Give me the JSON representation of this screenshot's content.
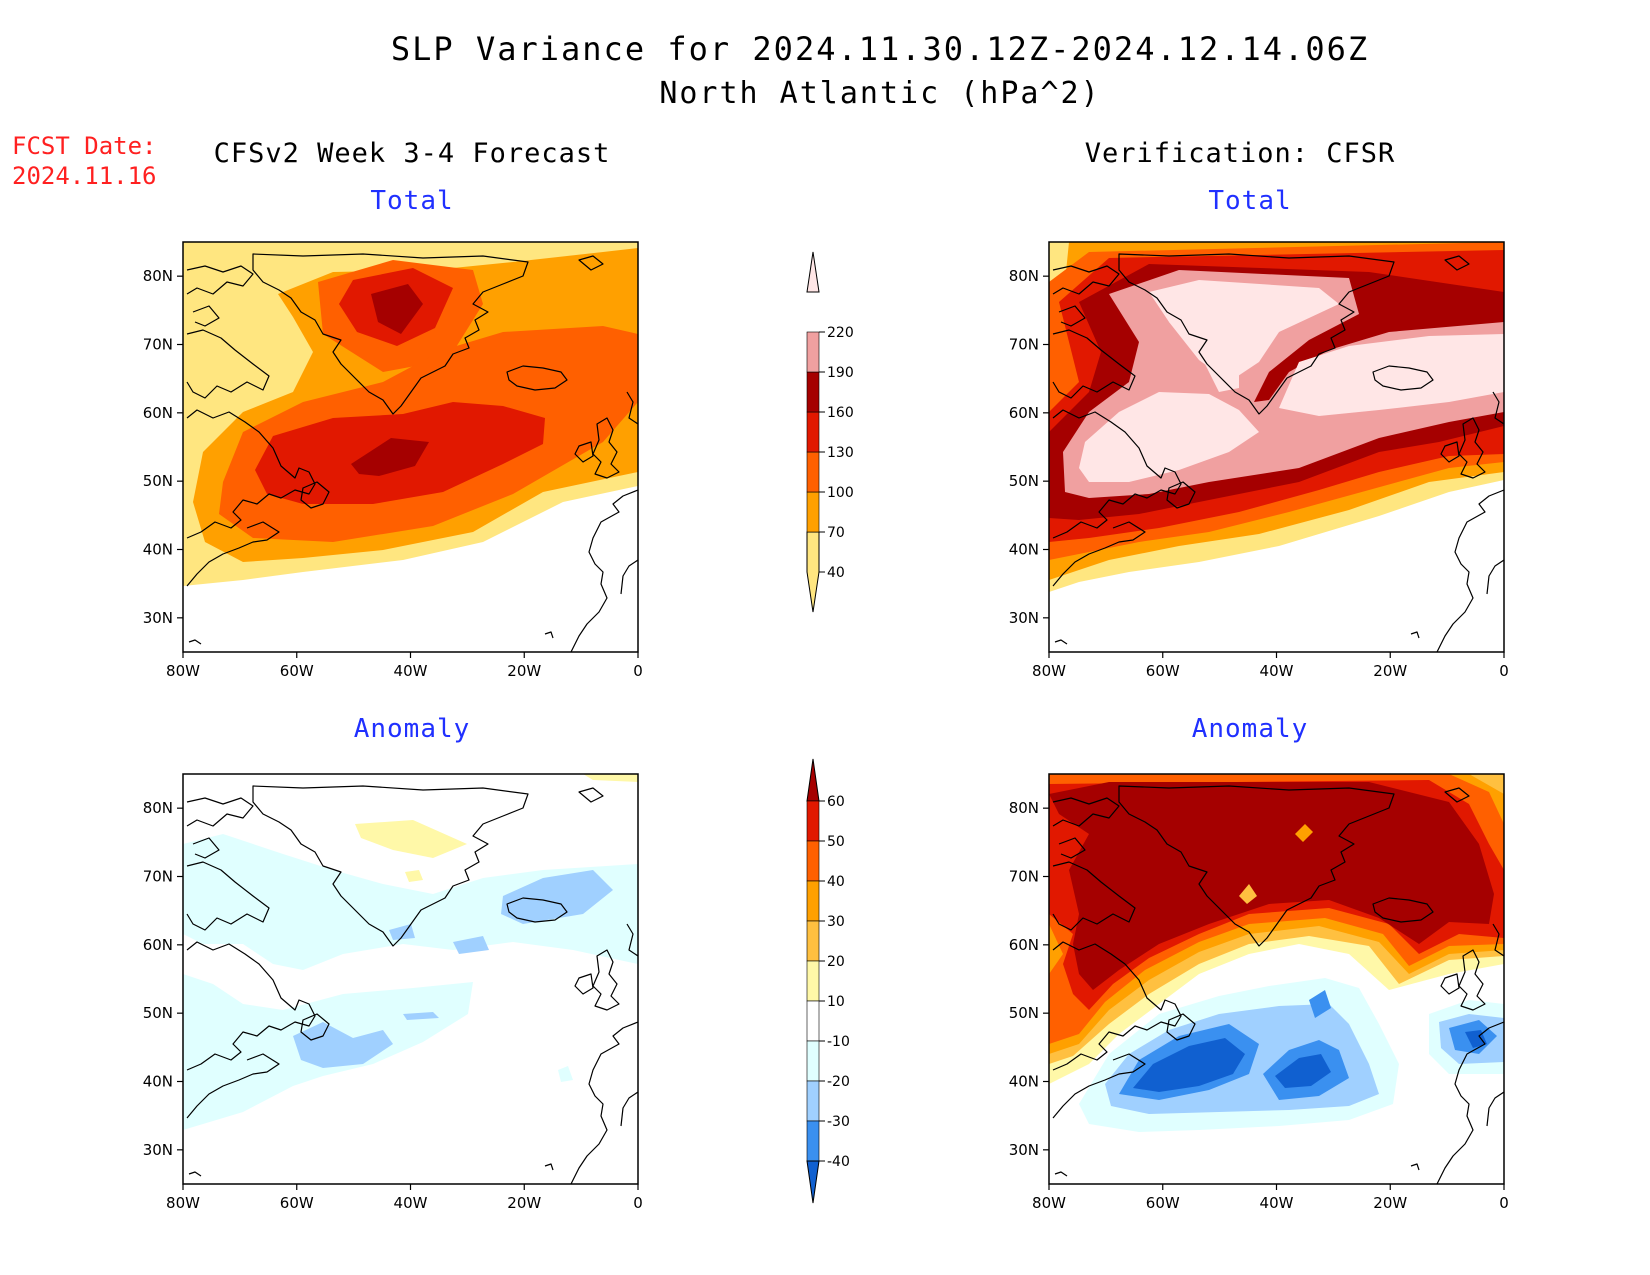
{
  "title_line1": "SLP Variance for 2024.11.30.12Z-2024.12.14.06Z",
  "title_line2": "North Atlantic (hPa^2)",
  "fcst_label": "FCST Date:",
  "fcst_date": "2024.11.16",
  "left_column_title": "CFSv2 Week 3-4 Forecast",
  "right_column_title": "Verification: CFSR",
  "panels": {
    "forecast_total": {
      "subtitle": "Total"
    },
    "forecast_anomaly": {
      "subtitle": "Anomaly"
    },
    "verification_total": {
      "subtitle": "Total"
    },
    "verification_anomaly": {
      "subtitle": "Anomaly"
    }
  },
  "axes": {
    "lat_ticks": [
      "80N",
      "70N",
      "60N",
      "50N",
      "40N",
      "30N"
    ],
    "lon_ticks": [
      "80W",
      "60W",
      "40W",
      "20W",
      "0"
    ],
    "lat_range": [
      25,
      85
    ],
    "lon_range": [
      -80,
      0
    ]
  },
  "colorbar_total": {
    "levels": [
      "40",
      "70",
      "100",
      "130",
      "160",
      "190",
      "220"
    ],
    "colors": [
      "#ffe680",
      "#ffa000",
      "#ff6000",
      "#e11800",
      "#a50000",
      "#f0a0a0",
      "#ffe6e6"
    ]
  },
  "colorbar_anomaly": {
    "levels": [
      "60",
      "50",
      "40",
      "30",
      "20",
      "10",
      "-10",
      "-20",
      "-30",
      "-40"
    ],
    "colors": [
      "#a50000",
      "#e11800",
      "#ff6000",
      "#ffa000",
      "#ffc040",
      "#fff8a8",
      "#ffffff",
      "#e0ffff",
      "#a0d0ff",
      "#3a90f0",
      "#1060d0"
    ]
  }
}
